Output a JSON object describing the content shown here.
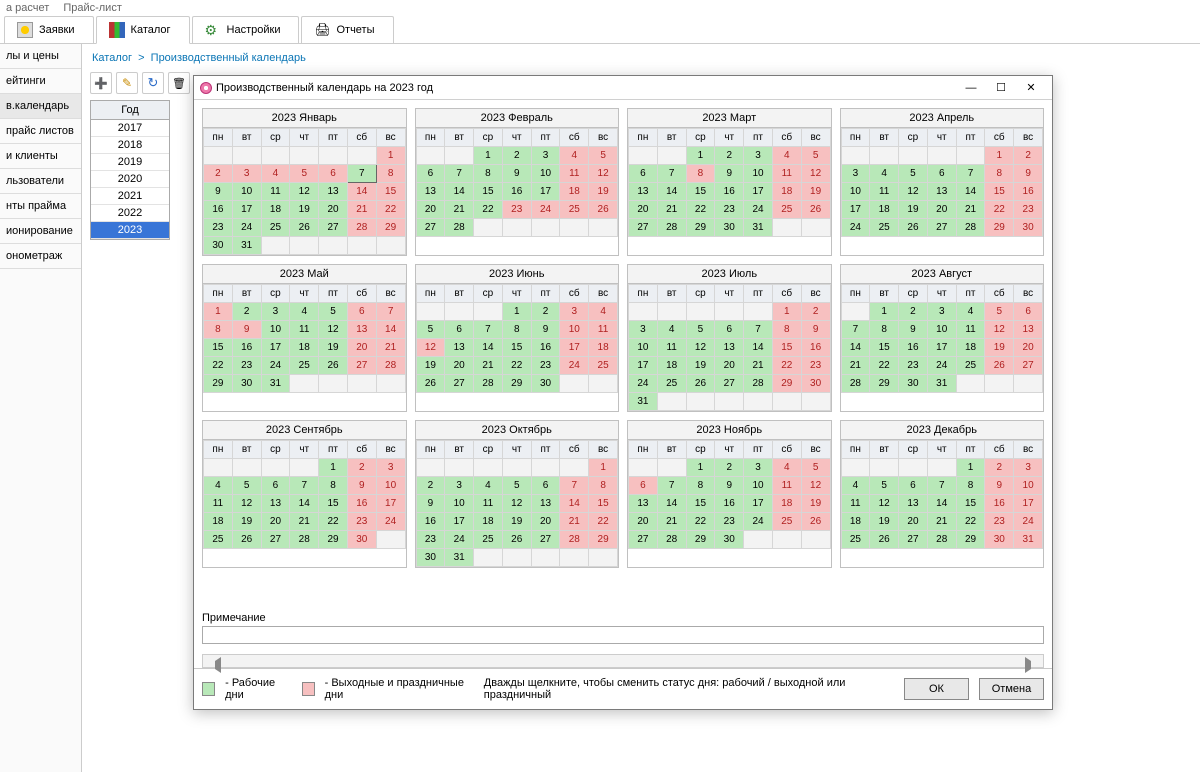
{
  "topmenu": [
    "а расчет",
    "Прайс-лист"
  ],
  "maintabs": [
    {
      "label": "Заявки",
      "icon": "req"
    },
    {
      "label": "Каталог",
      "icon": "books",
      "active": true
    },
    {
      "label": "Настройки",
      "icon": "gear"
    },
    {
      "label": "Отчеты",
      "icon": "print"
    }
  ],
  "sidebar": [
    "лы и цены",
    "ейтинги",
    "в.календарь",
    "прайс листов",
    "и клиенты",
    "льзователи",
    "нты прайма",
    "ионирование",
    "онометраж"
  ],
  "breadcrumb": [
    "Каталог",
    "Производственный календарь"
  ],
  "toolbar_icons": [
    "add",
    "edit",
    "refresh",
    "del"
  ],
  "year_header": "Год",
  "years": [
    "2017",
    "2018",
    "2019",
    "2020",
    "2021",
    "2022",
    "2023"
  ],
  "year_selected": "2023",
  "modal": {
    "title": "Производственный календарь на 2023 год",
    "note_label": "Примечание",
    "note_value": "",
    "legend_work": "- Рабочие дни",
    "legend_holiday": "- Выходные и праздничные дни",
    "hint": "Дважды щелкните, чтобы сменить статус дня: рабочий / выходной или праздничный",
    "ok": "ОК",
    "cancel": "Отмена"
  },
  "colors": {
    "work": "#b8e8b8",
    "holiday": "#f7c0c0",
    "grid": "#d6d6d6"
  },
  "dow": [
    "пн",
    "вт",
    "ср",
    "чт",
    "пт",
    "сб",
    "вс"
  ],
  "months": [
    {
      "name": "2023 Январь",
      "start": 6,
      "days": 31,
      "hol": [
        1,
        2,
        3,
        4,
        5,
        6,
        7,
        8,
        14,
        15,
        21,
        22,
        28,
        29
      ],
      "mark": 7
    },
    {
      "name": "2023 Февраль",
      "start": 2,
      "days": 28,
      "hol": [
        4,
        5,
        11,
        12,
        18,
        19,
        23,
        24,
        25,
        26
      ]
    },
    {
      "name": "2023 Март",
      "start": 2,
      "days": 31,
      "hol": [
        4,
        5,
        8,
        11,
        12,
        18,
        19,
        25,
        26
      ]
    },
    {
      "name": "2023 Апрель",
      "start": 5,
      "days": 30,
      "hol": [
        1,
        2,
        8,
        9,
        15,
        16,
        22,
        23,
        29,
        30
      ]
    },
    {
      "name": "2023 Май",
      "start": 0,
      "days": 31,
      "hol": [
        1,
        6,
        7,
        8,
        9,
        13,
        14,
        20,
        21,
        27,
        28
      ]
    },
    {
      "name": "2023 Июнь",
      "start": 3,
      "days": 30,
      "hol": [
        3,
        4,
        10,
        11,
        12,
        17,
        18,
        24,
        25
      ]
    },
    {
      "name": "2023 Июль",
      "start": 5,
      "days": 31,
      "hol": [
        1,
        2,
        8,
        9,
        15,
        16,
        22,
        23,
        29,
        30
      ]
    },
    {
      "name": "2023 Август",
      "start": 1,
      "days": 31,
      "hol": [
        5,
        6,
        12,
        13,
        19,
        20,
        26,
        27
      ]
    },
    {
      "name": "2023 Сентябрь",
      "start": 4,
      "days": 30,
      "hol": [
        2,
        3,
        9,
        10,
        16,
        17,
        23,
        24,
        30
      ]
    },
    {
      "name": "2023 Октябрь",
      "start": 6,
      "days": 31,
      "hol": [
        1,
        7,
        8,
        14,
        15,
        21,
        22,
        28,
        29
      ]
    },
    {
      "name": "2023 Ноябрь",
      "start": 2,
      "days": 30,
      "hol": [
        4,
        5,
        6,
        11,
        12,
        18,
        19,
        25,
        26
      ]
    },
    {
      "name": "2023 Декабрь",
      "start": 4,
      "days": 31,
      "hol": [
        2,
        3,
        9,
        10,
        16,
        17,
        23,
        24,
        30,
        31
      ]
    }
  ]
}
